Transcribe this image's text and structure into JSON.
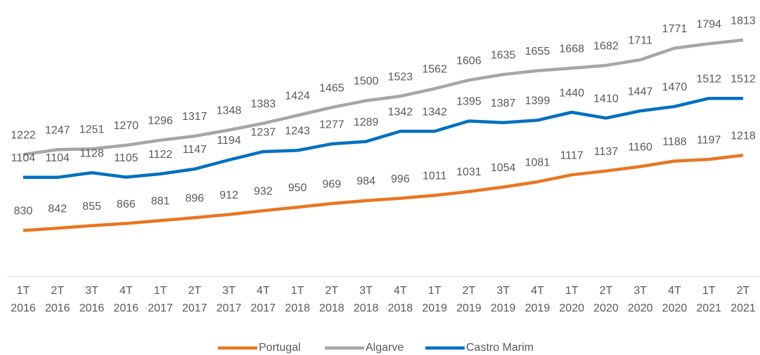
{
  "chart_data": {
    "type": "line",
    "categories": [
      "1T 2016",
      "2T 2016",
      "3T 2016",
      "4T 2016",
      "1T 2017",
      "2T 2017",
      "3T 2017",
      "4T 2017",
      "1T 2018",
      "2T 2018",
      "3T 2018",
      "4T 2018",
      "1T 2019",
      "2T 2019",
      "3T 2019",
      "4T 2019",
      "1T 2020",
      "2T 2020",
      "3T 2020",
      "4T 2020",
      "1T 2021",
      "2T 2021"
    ],
    "series": [
      {
        "name": "Portugal",
        "color": "#e87722",
        "values": [
          830,
          842,
          855,
          866,
          881,
          896,
          912,
          932,
          950,
          969,
          984,
          996,
          1011,
          1031,
          1054,
          1081,
          1117,
          1137,
          1160,
          1188,
          1197,
          1218
        ]
      },
      {
        "name": "Algarve",
        "color": "#a6a6a6",
        "values": [
          1222,
          1247,
          1251,
          1270,
          1296,
          1317,
          1348,
          1383,
          1424,
          1465,
          1500,
          1523,
          1562,
          1606,
          1635,
          1655,
          1668,
          1682,
          1711,
          1771,
          1794,
          1813
        ]
      },
      {
        "name": "Castro Marim",
        "color": "#0070c0",
        "values": [
          1104,
          1104,
          1128,
          1105,
          1122,
          1147,
          1194,
          1237,
          1243,
          1277,
          1289,
          1342,
          1342,
          1395,
          1387,
          1399,
          1440,
          1410,
          1447,
          1470,
          1512,
          1512
        ]
      }
    ],
    "ylim": [
      600,
      2000
    ]
  }
}
